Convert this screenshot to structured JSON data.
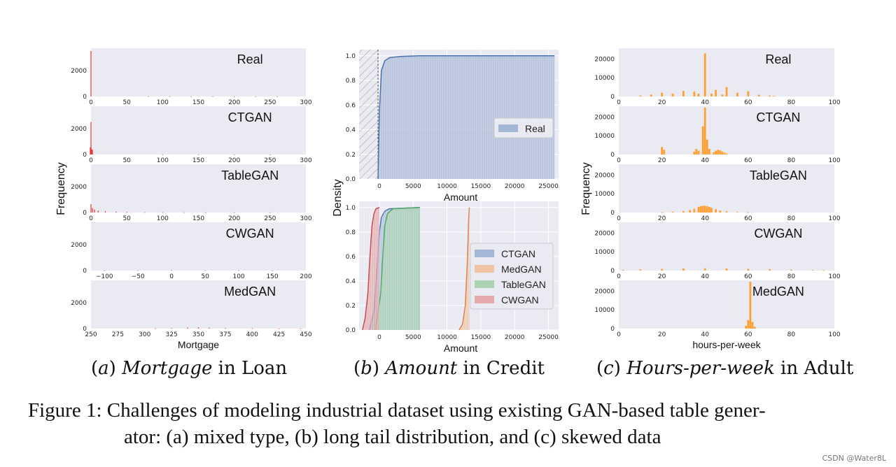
{
  "chart_data": [
    {
      "id": "a",
      "type": "bar",
      "ylabel": "Frequency",
      "xlabel": "Mortgage",
      "bar_color": "#ee3333",
      "panels": [
        {
          "title": "Real",
          "xlim": [
            0,
            300
          ],
          "xticks": [
            0,
            50,
            100,
            150,
            200,
            250,
            300
          ],
          "ymax": 3600,
          "yticks": [
            0,
            2000
          ],
          "bars": [
            [
              0,
              3500
            ],
            [
              80,
              12
            ],
            [
              110,
              10
            ],
            [
              140,
              9
            ],
            [
              170,
              8
            ],
            [
              200,
              6
            ],
            [
              230,
              5
            ],
            [
              260,
              4
            ]
          ]
        },
        {
          "title": "CTGAN",
          "xlim": [
            0,
            300
          ],
          "xticks": [
            0,
            50,
            100,
            150,
            200,
            250,
            300
          ],
          "ymax": 3600,
          "yticks": [
            0,
            2000
          ],
          "bars": [
            [
              -1,
              550
            ],
            [
              0,
              2500
            ],
            [
              1,
              400
            ],
            [
              2,
              350
            ],
            [
              100,
              6
            ],
            [
              150,
              6
            ],
            [
              200,
              5
            ],
            [
              250,
              4
            ]
          ]
        },
        {
          "title": "TableGAN",
          "xlim": [
            0,
            300
          ],
          "xticks": [
            0,
            50,
            100,
            150,
            200,
            250,
            300
          ],
          "ymax": 3600,
          "yticks": [
            0,
            2000
          ],
          "bars": [
            [
              0,
              650
            ],
            [
              2,
              350
            ],
            [
              5,
              230
            ],
            [
              10,
              150
            ],
            [
              20,
              100
            ],
            [
              35,
              70
            ],
            [
              50,
              50
            ],
            [
              75,
              30
            ],
            [
              100,
              20
            ],
            [
              130,
              12
            ],
            [
              160,
              8
            ],
            [
              200,
              5
            ],
            [
              250,
              3
            ]
          ]
        },
        {
          "title": "CWGAN",
          "xlim": [
            -120,
            200
          ],
          "xticks": [
            -100,
            -50,
            0,
            50,
            100,
            150,
            200
          ],
          "ymax": 3600,
          "yticks": [
            0,
            2000
          ],
          "bars": [
            [
              -100,
              15
            ],
            [
              -50,
              20
            ],
            [
              0,
              25
            ],
            [
              50,
              20
            ],
            [
              100,
              18
            ],
            [
              150,
              12
            ]
          ]
        },
        {
          "title": "MedGAN",
          "xlim": [
            250,
            450
          ],
          "xticks": [
            250,
            275,
            300,
            325,
            350,
            375,
            400,
            425,
            450
          ],
          "ymax": 3600,
          "yticks": [
            0,
            2000
          ],
          "bars": [
            [
              310,
              20
            ],
            [
              325,
              40
            ],
            [
              340,
              80
            ],
            [
              350,
              90
            ],
            [
              360,
              70
            ],
            [
              375,
              40
            ],
            [
              400,
              20
            ],
            [
              425,
              10
            ],
            [
              445,
              5
            ]
          ]
        }
      ]
    },
    {
      "id": "b",
      "type": "line",
      "ylabel": "Density",
      "xlabel": "Amount",
      "panels": [
        {
          "xlim": [
            -3000,
            26500
          ],
          "ylim": [
            0,
            1.05
          ],
          "xticks": [
            0,
            5000,
            10000,
            15000,
            20000,
            25000
          ],
          "yticks": [
            0.0,
            0.2,
            0.4,
            0.6,
            0.8,
            1.0
          ],
          "legend": "right",
          "series": [
            {
              "name": "Real",
              "color": "#4c72b0",
              "fill": "#a5b7d6",
              "hatch_end": -200,
              "fill_end": 25900,
              "x": [
                -200,
                0,
                300,
                800,
                1500,
                3000,
                6000,
                25900
              ],
              "y": [
                0.0,
                0.55,
                0.88,
                0.96,
                0.985,
                0.995,
                1.0,
                1.0
              ]
            }
          ]
        },
        {
          "xlim": [
            -3000,
            26500
          ],
          "ylim": [
            0,
            1.05
          ],
          "xticks": [
            0,
            5000,
            10000,
            15000,
            20000,
            25000
          ],
          "yticks": [
            0.0,
            0.2,
            0.4,
            0.6,
            0.8,
            1.0
          ],
          "legend": "right",
          "series": [
            {
              "name": "CTGAN",
              "color": "#4c72b0",
              "fill": "#a5b7d6",
              "fill_end": 6000,
              "x": [
                -1500,
                -800,
                -300,
                0,
                300,
                800,
                1500,
                6000
              ],
              "y": [
                0.0,
                0.15,
                0.55,
                0.8,
                0.92,
                0.97,
                0.99,
                1.0
              ]
            },
            {
              "name": "MedGAN",
              "color": "#dd8452",
              "fill": "#efc3a4",
              "fill_end": 13300,
              "x": [
                11800,
                12300,
                12700,
                13000,
                13200,
                13300
              ],
              "y": [
                0.0,
                0.05,
                0.2,
                0.55,
                0.9,
                1.0
              ]
            },
            {
              "name": "TableGAN",
              "color": "#55a868",
              "fill": "#acd4b4",
              "fill_end": 6000,
              "x": [
                -600,
                200,
                500,
                800,
                1200,
                2000,
                6000
              ],
              "y": [
                0.0,
                0.3,
                0.6,
                0.85,
                0.95,
                0.99,
                1.0
              ]
            },
            {
              "name": "CWGAN",
              "color": "#c44e52",
              "fill": "#e3a9ab",
              "fill_end": 0,
              "x": [
                -2500,
                -2100,
                -1700,
                -1400,
                -1100,
                -800,
                -500,
                0
              ],
              "y": [
                0.0,
                0.1,
                0.3,
                0.6,
                0.85,
                0.95,
                0.99,
                1.0
              ]
            }
          ]
        }
      ]
    },
    {
      "id": "c",
      "type": "bar",
      "ylabel": "Frequency",
      "xlabel": "hours-per-week",
      "bar_color": "#ffa033",
      "panels": [
        {
          "title": "Real",
          "xlim": [
            0,
            100
          ],
          "xticks": [
            0,
            20,
            40,
            60,
            80,
            100
          ],
          "ymax": 25000,
          "yticks": [
            0,
            10000,
            20000
          ],
          "bars": [
            [
              10,
              500
            ],
            [
              15,
              1000
            ],
            [
              20,
              2000
            ],
            [
              25,
              1500
            ],
            [
              30,
              3000
            ],
            [
              35,
              2500
            ],
            [
              37,
              1500
            ],
            [
              40,
              23000
            ],
            [
              43,
              1500
            ],
            [
              45,
              3500
            ],
            [
              48,
              1000
            ],
            [
              50,
              5000
            ],
            [
              55,
              2000
            ],
            [
              60,
              2800
            ],
            [
              65,
              900
            ],
            [
              70,
              500
            ],
            [
              72,
              300
            ]
          ]
        },
        {
          "title": "CTGAN",
          "xlim": [
            0,
            100
          ],
          "xticks": [
            0,
            20,
            40,
            60,
            80,
            100
          ],
          "ymax": 25000,
          "yticks": [
            0,
            10000,
            20000
          ],
          "bars": [
            [
              20,
              4000
            ],
            [
              21,
              2500
            ],
            [
              35,
              1500
            ],
            [
              36,
              3000
            ],
            [
              37,
              2000
            ],
            [
              39,
              15000
            ],
            [
              40,
              25000
            ],
            [
              41,
              8000
            ],
            [
              42,
              3000
            ],
            [
              44,
              1200
            ],
            [
              45,
              2000
            ],
            [
              46,
              2500
            ],
            [
              47,
              2200
            ],
            [
              48,
              1600
            ],
            [
              49,
              1000
            ],
            [
              50,
              500
            ]
          ]
        },
        {
          "title": "TableGAN",
          "xlim": [
            0,
            100
          ],
          "xticks": [
            0,
            20,
            40,
            60,
            80,
            100
          ],
          "ymax": 25000,
          "yticks": [
            0,
            10000,
            20000
          ],
          "bars": [
            [
              20,
              200
            ],
            [
              25,
              400
            ],
            [
              30,
              800
            ],
            [
              33,
              1300
            ],
            [
              35,
              2000
            ],
            [
              37,
              3000
            ],
            [
              38,
              3400
            ],
            [
              39,
              3600
            ],
            [
              40,
              3600
            ],
            [
              41,
              3400
            ],
            [
              42,
              3000
            ],
            [
              43,
              2500
            ],
            [
              45,
              1800
            ],
            [
              47,
              1100
            ],
            [
              50,
              600
            ],
            [
              55,
              250
            ],
            [
              60,
              120
            ]
          ]
        },
        {
          "title": "CWGAN",
          "xlim": [
            0,
            100
          ],
          "xticks": [
            0,
            20,
            40,
            60,
            80,
            100
          ],
          "ymax": 25000,
          "yticks": [
            0,
            10000,
            20000
          ],
          "bars": [
            [
              2,
              400
            ],
            [
              10,
              600
            ],
            [
              20,
              900
            ],
            [
              30,
              1100
            ],
            [
              40,
              1200
            ],
            [
              50,
              1100
            ],
            [
              60,
              900
            ],
            [
              70,
              700
            ],
            [
              80,
              500
            ],
            [
              90,
              300
            ],
            [
              95,
              200
            ]
          ]
        },
        {
          "title": "MedGAN",
          "xlim": [
            0,
            100
          ],
          "xticks": [
            0,
            20,
            40,
            60,
            80,
            100
          ],
          "ymax": 25000,
          "yticks": [
            0,
            10000,
            20000
          ],
          "bars": [
            [
              59,
              1500
            ],
            [
              60,
              4500
            ],
            [
              61,
              25000
            ],
            [
              62,
              3500
            ],
            [
              63,
              1000
            ]
          ]
        }
      ]
    }
  ],
  "captions": {
    "a_italic": "Mortgage",
    "a_rest": " in Loan",
    "b_italic": "Amount",
    "b_rest": " in Credit",
    "c_italic": "Hours-per-week",
    "c_rest": " in Adult",
    "main_line1": "Figure 1: Challenges of modeling industrial dataset using existing GAN-based table gener-",
    "main_line2": "ator: (a) mixed type, (b) long tail distribution, and (c) skewed data"
  },
  "watermark": "CSDN @Water8L"
}
